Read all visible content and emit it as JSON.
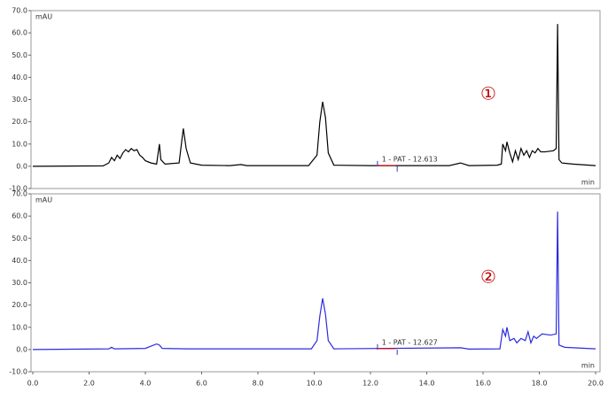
{
  "chart_data": [
    {
      "type": "line",
      "y_label": "mAU",
      "x_label": "min",
      "annotations": [
        "1 - PAT - 12.613",
        "①"
      ],
      "xlim": [
        0,
        20
      ],
      "ylim": [
        -10,
        70
      ],
      "yticks": [
        {
          "value": -10,
          "label": "-10.0"
        },
        {
          "value": 0,
          "label": "0.0"
        },
        {
          "value": 10,
          "label": "10.0"
        },
        {
          "value": 20,
          "label": "20.0"
        },
        {
          "value": 30,
          "label": "30.0"
        },
        {
          "value": 40,
          "label": "40.0"
        },
        {
          "value": 50,
          "label": "50.0"
        },
        {
          "value": 60,
          "label": "60.0"
        },
        {
          "value": 70,
          "label": "70.0"
        }
      ],
      "series": [
        {
          "color": "#000000",
          "x": [
            0,
            2.5,
            2.7,
            2.8,
            2.9,
            3.0,
            3.1,
            3.2,
            3.3,
            3.4,
            3.5,
            3.6,
            3.7,
            3.8,
            3.9,
            4.0,
            4.2,
            4.4,
            4.5,
            4.55,
            4.7,
            5.2,
            5.3,
            5.35,
            5.45,
            5.6,
            6.0,
            7.0,
            7.4,
            7.6,
            9.8,
            10.1,
            10.2,
            10.3,
            10.4,
            10.5,
            10.7,
            12,
            14.8,
            15.2,
            15.5,
            16.5,
            16.65,
            16.7,
            16.8,
            16.85,
            16.95,
            17.05,
            17.15,
            17.25,
            17.35,
            17.45,
            17.55,
            17.65,
            17.75,
            17.85,
            17.95,
            18.05,
            18.2,
            18.5,
            18.6,
            18.65,
            18.7,
            18.8,
            19.2,
            20
          ],
          "values": [
            0,
            0.2,
            1.5,
            4,
            2.5,
            5,
            3.5,
            6,
            7.5,
            6.5,
            8,
            7,
            7.5,
            5,
            4,
            2.5,
            1.5,
            1,
            10,
            3,
            1,
            1.5,
            12,
            17,
            8,
            1.5,
            0.5,
            0.3,
            0.8,
            0.3,
            0.3,
            5,
            20,
            29,
            22,
            6,
            0.5,
            0.3,
            0.3,
            1.5,
            0.3,
            0.5,
            1,
            10,
            7,
            11,
            6,
            2,
            7,
            3,
            8,
            5,
            7,
            4,
            7,
            6,
            8,
            6.5,
            6.5,
            7,
            8,
            64,
            3,
            1.5,
            1,
            0.3
          ]
        }
      ]
    },
    {
      "type": "line",
      "y_label": "mAU",
      "x_label": "min",
      "annotations": [
        "1 - PAT - 12.627",
        "②"
      ],
      "xlim": [
        0,
        20
      ],
      "ylim": [
        -10,
        70
      ],
      "xticks": [
        {
          "value": 0,
          "label": "0.0"
        },
        {
          "value": 2,
          "label": "2.0"
        },
        {
          "value": 4,
          "label": "4.0"
        },
        {
          "value": 6,
          "label": "6.0"
        },
        {
          "value": 8,
          "label": "8.0"
        },
        {
          "value": 10,
          "label": "10.0"
        },
        {
          "value": 12,
          "label": "12.0"
        },
        {
          "value": 14,
          "label": "14.0"
        },
        {
          "value": 16,
          "label": "16.0"
        },
        {
          "value": 18,
          "label": "18.0"
        },
        {
          "value": 20,
          "label": "20.0"
        }
      ],
      "yticks": [
        {
          "value": -10,
          "label": "-10.0"
        },
        {
          "value": 0,
          "label": "0.0"
        },
        {
          "value": 10,
          "label": "10.0"
        },
        {
          "value": 20,
          "label": "20.0"
        },
        {
          "value": 30,
          "label": "30.0"
        },
        {
          "value": 40,
          "label": "40.0"
        },
        {
          "value": 50,
          "label": "50.0"
        },
        {
          "value": 60,
          "label": "60.0"
        },
        {
          "value": 70,
          "label": "70.0"
        }
      ],
      "series": [
        {
          "color": "#2b2be0",
          "x": [
            0,
            2.7,
            2.8,
            2.9,
            4.0,
            4.2,
            4.4,
            4.5,
            4.6,
            5.5,
            9.9,
            10.1,
            10.2,
            10.3,
            10.4,
            10.5,
            10.7,
            15.2,
            15.5,
            16.6,
            16.7,
            16.8,
            16.85,
            16.95,
            17.1,
            17.2,
            17.35,
            17.5,
            17.6,
            17.7,
            17.8,
            17.9,
            18.1,
            18.4,
            18.6,
            18.65,
            18.7,
            18.9,
            20
          ],
          "values": [
            0,
            0.3,
            1,
            0.3,
            0.5,
            1.5,
            2.5,
            2,
            0.5,
            0.3,
            0.3,
            4,
            15,
            23,
            16,
            4,
            0.3,
            0.8,
            0.2,
            0.3,
            9,
            6,
            10,
            4,
            5,
            3,
            5,
            4,
            8,
            3,
            6,
            5,
            7,
            6.5,
            7,
            62,
            2,
            1,
            0.3
          ]
        }
      ]
    }
  ]
}
